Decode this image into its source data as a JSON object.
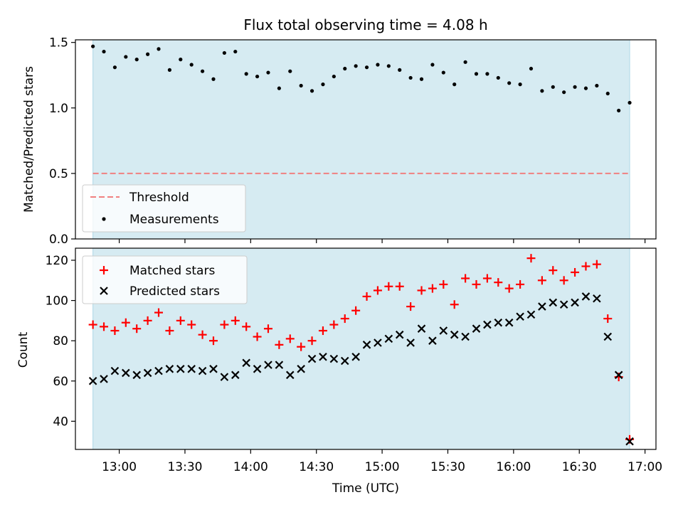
{
  "chart_data": [
    {
      "type": "scatter",
      "title": "Flux total observing time = 4.08 h",
      "xlabel": "",
      "ylabel": "Matched/Predicted stars",
      "ylim": [
        0,
        1.52
      ],
      "yticks": [
        0.0,
        0.5,
        1.0,
        1.5
      ],
      "ytick_labels": [
        "0.0",
        "0.5",
        "1.0",
        "1.5"
      ],
      "shade": {
        "start": "12:48",
        "end": "16:53",
        "color": "#add8e6"
      },
      "threshold": {
        "name": "Threshold",
        "value": 0.5,
        "color": "#f08080"
      },
      "measurements": {
        "name": "Measurements",
        "color": "#000000",
        "x": [
          "12:48",
          "12:53",
          "12:58",
          "13:03",
          "13:08",
          "13:13",
          "13:18",
          "13:23",
          "13:28",
          "13:33",
          "13:38",
          "13:43",
          "13:48",
          "13:53",
          "13:58",
          "14:03",
          "14:08",
          "14:13",
          "14:18",
          "14:23",
          "14:28",
          "14:33",
          "14:38",
          "14:43",
          "14:48",
          "14:53",
          "14:58",
          "15:03",
          "15:08",
          "15:13",
          "15:18",
          "15:23",
          "15:28",
          "15:33",
          "15:38",
          "15:43",
          "15:48",
          "15:53",
          "15:58",
          "16:03",
          "16:08",
          "16:13",
          "16:18",
          "16:23",
          "16:28",
          "16:33",
          "16:38",
          "16:43",
          "16:48",
          "16:53"
        ],
        "y": [
          1.47,
          1.43,
          1.31,
          1.39,
          1.37,
          1.41,
          1.45,
          1.29,
          1.37,
          1.33,
          1.28,
          1.22,
          1.42,
          1.43,
          1.26,
          1.24,
          1.27,
          1.15,
          1.28,
          1.17,
          1.13,
          1.18,
          1.24,
          1.3,
          1.32,
          1.31,
          1.33,
          1.32,
          1.29,
          1.23,
          1.22,
          1.33,
          1.27,
          1.18,
          1.35,
          1.26,
          1.26,
          1.23,
          1.19,
          1.18,
          1.3,
          1.13,
          1.16,
          1.12,
          1.16,
          1.15,
          1.17,
          1.11,
          0.98,
          1.04
        ]
      },
      "legend": {
        "loc": "lower-left",
        "entries": [
          "Threshold",
          "Measurements"
        ]
      }
    },
    {
      "type": "scatter",
      "title": "",
      "xlabel": "Time (UTC)",
      "ylabel": "Count",
      "ylim": [
        26,
        126
      ],
      "yticks": [
        40,
        60,
        80,
        100,
        120
      ],
      "xlim": [
        "12:40",
        "17:05"
      ],
      "xticks": [
        "13:00",
        "13:30",
        "14:00",
        "14:30",
        "15:00",
        "15:30",
        "16:00",
        "16:30",
        "17:00"
      ],
      "shade": {
        "start": "12:48",
        "end": "16:53",
        "color": "#add8e6"
      },
      "x": [
        "12:48",
        "12:53",
        "12:58",
        "13:03",
        "13:08",
        "13:13",
        "13:18",
        "13:23",
        "13:28",
        "13:33",
        "13:38",
        "13:43",
        "13:48",
        "13:53",
        "13:58",
        "14:03",
        "14:08",
        "14:13",
        "14:18",
        "14:23",
        "14:28",
        "14:33",
        "14:38",
        "14:43",
        "14:48",
        "14:53",
        "14:58",
        "15:03",
        "15:08",
        "15:13",
        "15:18",
        "15:23",
        "15:28",
        "15:33",
        "15:38",
        "15:43",
        "15:48",
        "15:53",
        "15:58",
        "16:03",
        "16:08",
        "16:13",
        "16:18",
        "16:23",
        "16:28",
        "16:33",
        "16:38",
        "16:43",
        "16:48",
        "16:53"
      ],
      "series": [
        {
          "name": "Matched stars",
          "marker": "plus",
          "color": "#ff0000",
          "values": [
            88,
            87,
            85,
            89,
            86,
            90,
            94,
            85,
            90,
            88,
            83,
            80,
            88,
            90,
            87,
            82,
            86,
            78,
            81,
            77,
            80,
            85,
            88,
            91,
            95,
            102,
            105,
            107,
            107,
            97,
            105,
            106,
            108,
            98,
            111,
            108,
            111,
            109,
            106,
            108,
            121,
            110,
            115,
            110,
            114,
            117,
            118,
            91,
            62,
            31
          ]
        },
        {
          "name": "Predicted stars",
          "marker": "x",
          "color": "#000000",
          "values": [
            60,
            61,
            65,
            64,
            63,
            64,
            65,
            66,
            66,
            66,
            65,
            66,
            62,
            63,
            69,
            66,
            68,
            68,
            63,
            66,
            71,
            72,
            71,
            70,
            72,
            78,
            79,
            81,
            83,
            79,
            86,
            80,
            85,
            83,
            82,
            86,
            88,
            89,
            89,
            92,
            93,
            97,
            99,
            98,
            99,
            102,
            101,
            82,
            63,
            30
          ]
        }
      ],
      "legend": {
        "loc": "upper-left",
        "entries": [
          "Matched stars",
          "Predicted stars"
        ]
      }
    }
  ]
}
